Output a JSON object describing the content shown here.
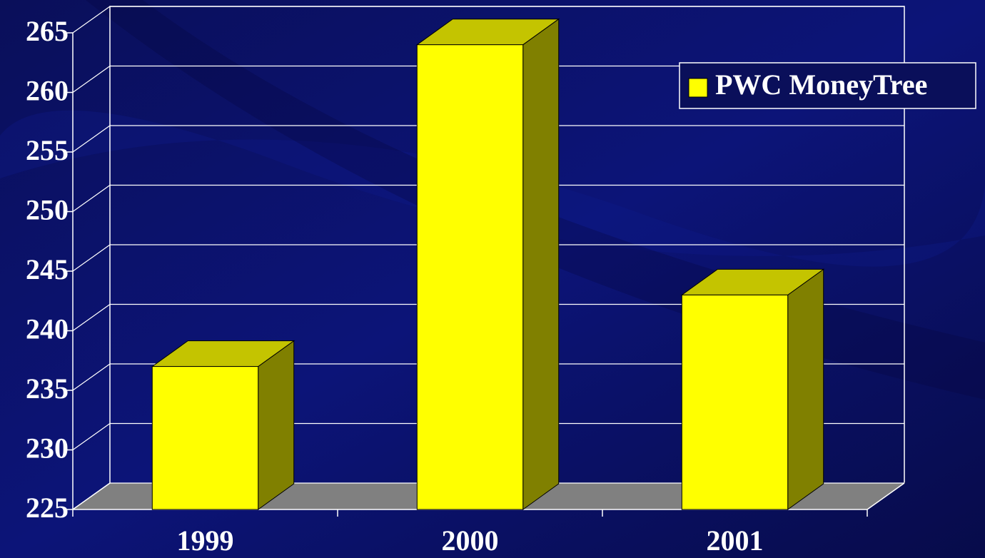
{
  "chart_data": {
    "type": "bar3d",
    "categories": [
      "1999",
      "2000",
      "2001"
    ],
    "series": [
      {
        "name": "PWC MoneyTree",
        "color": "#ffff00",
        "values": [
          237,
          264,
          243
        ]
      }
    ],
    "ylim": [
      225,
      265
    ],
    "yticks": [
      225,
      230,
      235,
      240,
      245,
      250,
      255,
      260,
      265
    ],
    "grid": true,
    "legend": "upper right"
  }
}
